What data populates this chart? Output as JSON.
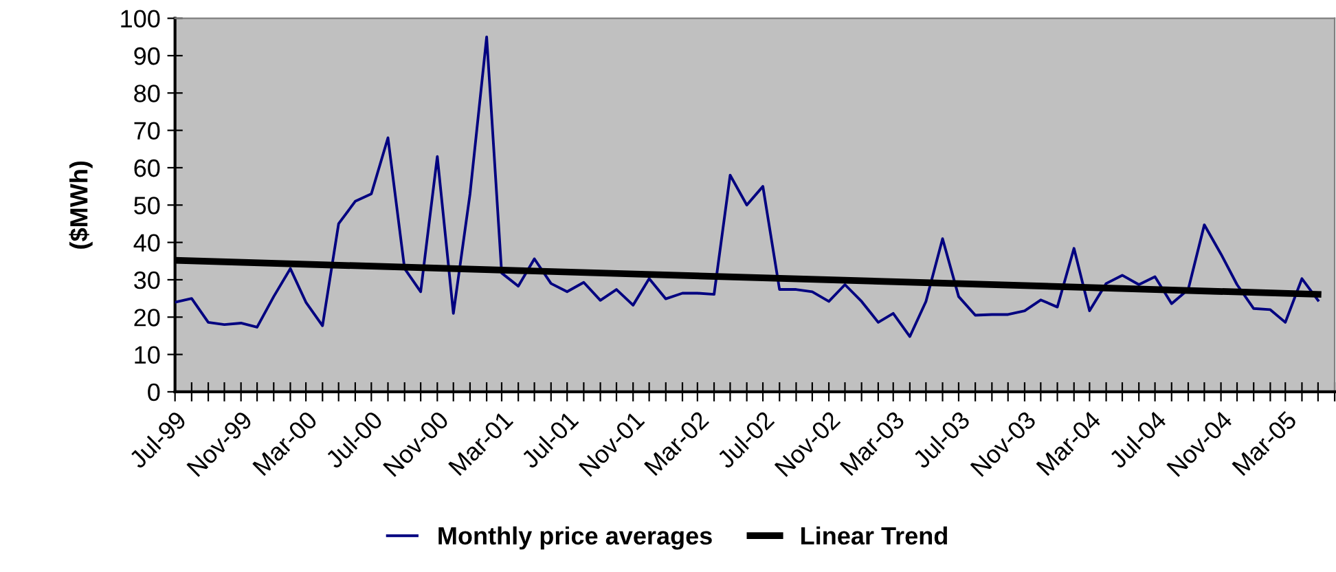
{
  "chart_data": {
    "type": "line",
    "ylabel": "($MWh)",
    "x": [
      "1999-07",
      "1999-08",
      "1999-09",
      "1999-10",
      "1999-11",
      "1999-12",
      "2000-01",
      "2000-02",
      "2000-03",
      "2000-04",
      "2000-05",
      "2000-06",
      "2000-07",
      "2000-08",
      "2000-09",
      "2000-10",
      "2000-11",
      "2000-12",
      "2001-01",
      "2001-02",
      "2001-03",
      "2001-04",
      "2001-05",
      "2001-06",
      "2001-07",
      "2001-08",
      "2001-09",
      "2001-10",
      "2001-11",
      "2001-12",
      "2002-01",
      "2002-02",
      "2002-03",
      "2002-04",
      "2002-05",
      "2002-06",
      "2002-07",
      "2002-08",
      "2002-09",
      "2002-10",
      "2002-11",
      "2002-12",
      "2003-01",
      "2003-02",
      "2003-03",
      "2003-04",
      "2003-05",
      "2003-06",
      "2003-07",
      "2003-08",
      "2003-09",
      "2003-10",
      "2003-11",
      "2003-12",
      "2004-01",
      "2004-02",
      "2004-03",
      "2004-04",
      "2004-05",
      "2004-06",
      "2004-07",
      "2004-08",
      "2004-09",
      "2004-10",
      "2004-11",
      "2004-12",
      "2005-01",
      "2005-02",
      "2005-03",
      "2005-04",
      "2005-05"
    ],
    "series": [
      {
        "name": "Monthly price averages",
        "color": "#000080",
        "values": [
          24,
          25,
          18.6,
          18,
          18.4,
          17.3,
          25.5,
          33,
          24,
          17.7,
          45,
          51,
          53,
          68,
          33,
          26.8,
          63,
          21,
          53,
          95,
          31.8,
          28.3,
          35.6,
          29,
          26.8,
          29.3,
          24.5,
          27.4,
          23.2,
          30.3,
          24.9,
          26.4,
          26.4,
          26.1,
          58,
          50,
          55,
          27.4,
          27.4,
          26.8,
          24.2,
          28.7,
          24.2,
          18.6,
          21,
          14.8,
          24.2,
          41,
          25.5,
          20.5,
          20.7,
          20.7,
          21.7,
          24.6,
          22.7,
          38.4,
          21.7,
          29,
          31.2,
          28.7,
          30.8,
          23.6,
          27.4,
          44.7,
          36.9,
          28.7,
          22.3,
          22,
          18.6,
          30.3,
          24.5
        ]
      },
      {
        "name": "Linear Trend",
        "color": "#000000",
        "x": [
          "1999-07",
          "2005-05"
        ],
        "values": [
          35.2,
          26.1
        ]
      }
    ],
    "xlim": [
      "1999-07",
      "2005-06"
    ],
    "xticks": [
      {
        "value": "1999-07",
        "label": "Jul-99"
      },
      {
        "value": "1999-08",
        "label": null
      },
      {
        "value": "1999-09",
        "label": null
      },
      {
        "value": "1999-10",
        "label": null
      },
      {
        "value": "1999-11",
        "label": "Nov-99"
      },
      {
        "value": "1999-12",
        "label": null
      },
      {
        "value": "2000-01",
        "label": null
      },
      {
        "value": "2000-02",
        "label": null
      },
      {
        "value": "2000-03",
        "label": "Mar-00"
      },
      {
        "value": "2000-04",
        "label": null
      },
      {
        "value": "2000-05",
        "label": null
      },
      {
        "value": "2000-06",
        "label": null
      },
      {
        "value": "2000-07",
        "label": "Jul-00"
      },
      {
        "value": "2000-08",
        "label": null
      },
      {
        "value": "2000-09",
        "label": null
      },
      {
        "value": "2000-10",
        "label": null
      },
      {
        "value": "2000-11",
        "label": "Nov-00"
      },
      {
        "value": "2000-12",
        "label": null
      },
      {
        "value": "2001-01",
        "label": null
      },
      {
        "value": "2001-02",
        "label": null
      },
      {
        "value": "2001-03",
        "label": "Mar-01"
      },
      {
        "value": "2001-04",
        "label": null
      },
      {
        "value": "2001-05",
        "label": null
      },
      {
        "value": "2001-06",
        "label": null
      },
      {
        "value": "2001-07",
        "label": "Jul-01"
      },
      {
        "value": "2001-08",
        "label": null
      },
      {
        "value": "2001-09",
        "label": null
      },
      {
        "value": "2001-10",
        "label": null
      },
      {
        "value": "2001-11",
        "label": "Nov-01"
      },
      {
        "value": "2001-12",
        "label": null
      },
      {
        "value": "2002-01",
        "label": null
      },
      {
        "value": "2002-02",
        "label": null
      },
      {
        "value": "2002-03",
        "label": "Mar-02"
      },
      {
        "value": "2002-04",
        "label": null
      },
      {
        "value": "2002-05",
        "label": null
      },
      {
        "value": "2002-06",
        "label": null
      },
      {
        "value": "2002-07",
        "label": "Jul-02"
      },
      {
        "value": "2002-08",
        "label": null
      },
      {
        "value": "2002-09",
        "label": null
      },
      {
        "value": "2002-10",
        "label": null
      },
      {
        "value": "2002-11",
        "label": "Nov-02"
      },
      {
        "value": "2002-12",
        "label": null
      },
      {
        "value": "2003-01",
        "label": null
      },
      {
        "value": "2003-02",
        "label": null
      },
      {
        "value": "2003-03",
        "label": "Mar-03"
      },
      {
        "value": "2003-04",
        "label": null
      },
      {
        "value": "2003-05",
        "label": null
      },
      {
        "value": "2003-06",
        "label": null
      },
      {
        "value": "2003-07",
        "label": "Jul-03"
      },
      {
        "value": "2003-08",
        "label": null
      },
      {
        "value": "2003-09",
        "label": null
      },
      {
        "value": "2003-10",
        "label": null
      },
      {
        "value": "2003-11",
        "label": "Nov-03"
      },
      {
        "value": "2003-12",
        "label": null
      },
      {
        "value": "2004-01",
        "label": null
      },
      {
        "value": "2004-02",
        "label": null
      },
      {
        "value": "2004-03",
        "label": "Mar-04"
      },
      {
        "value": "2004-04",
        "label": null
      },
      {
        "value": "2004-05",
        "label": null
      },
      {
        "value": "2004-06",
        "label": null
      },
      {
        "value": "2004-07",
        "label": "Jul-04"
      },
      {
        "value": "2004-08",
        "label": null
      },
      {
        "value": "2004-09",
        "label": null
      },
      {
        "value": "2004-10",
        "label": null
      },
      {
        "value": "2004-11",
        "label": "Nov-04"
      },
      {
        "value": "2004-12",
        "label": null
      },
      {
        "value": "2005-01",
        "label": null
      },
      {
        "value": "2005-02",
        "label": null
      },
      {
        "value": "2005-03",
        "label": "Mar-05"
      },
      {
        "value": "2005-04",
        "label": null
      },
      {
        "value": "2005-05",
        "label": null
      },
      {
        "value": "2005-06",
        "label": null
      }
    ],
    "ylim": [
      0,
      100
    ],
    "yticks": [
      0,
      10,
      20,
      30,
      40,
      50,
      60,
      70,
      80,
      90,
      100
    ],
    "grid": false,
    "legend": "bottom",
    "marker": "none",
    "line_style": "solid"
  }
}
